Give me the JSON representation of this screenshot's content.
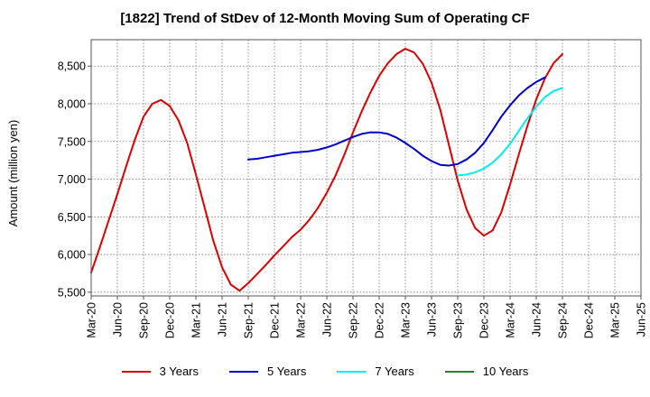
{
  "chart_data": {
    "type": "line",
    "title": "[1822]  Trend of StDev of 12-Month Moving Sum of Operating CF",
    "xlabel": "",
    "ylabel": "Amount (million yen)",
    "ylim": [
      5450,
      8850
    ],
    "yticks": [
      5500,
      6000,
      6500,
      7000,
      7500,
      8000,
      8500
    ],
    "ytick_labels": [
      "5,500",
      "6,000",
      "6,500",
      "7,000",
      "7,500",
      "8,000",
      "8,500"
    ],
    "xticks": [
      "Mar-20",
      "Jun-20",
      "Sep-20",
      "Dec-20",
      "Mar-21",
      "Jun-21",
      "Sep-21",
      "Dec-21",
      "Mar-22",
      "Jun-22",
      "Sep-22",
      "Dec-22",
      "Mar-23",
      "Jun-23",
      "Sep-23",
      "Dec-23",
      "Mar-24",
      "Jun-24",
      "Sep-24",
      "Dec-24",
      "Mar-25",
      "Jun-25"
    ],
    "grid": true,
    "legend_position": "bottom",
    "series": [
      {
        "name": "3 Years",
        "color": "#dd0000",
        "start": "Mar-20",
        "values": [
          5760,
          6100,
          6450,
          6800,
          7170,
          7520,
          7830,
          8000,
          8050,
          7970,
          7780,
          7480,
          7060,
          6620,
          6180,
          5830,
          5600,
          5520,
          5620,
          5740,
          5860,
          5990,
          6110,
          6230,
          6330,
          6460,
          6620,
          6820,
          7050,
          7320,
          7620,
          7900,
          8150,
          8370,
          8540,
          8660,
          8730,
          8680,
          8530,
          8280,
          7920,
          7450,
          6980,
          6600,
          6350,
          6250,
          6320,
          6560,
          6930,
          7330,
          7710,
          8060,
          8340,
          8540,
          8660
        ]
      },
      {
        "name": "5 Years",
        "color": "#0000cc",
        "start": "Sep-21",
        "values": [
          7260,
          7270,
          7290,
          7310,
          7330,
          7350,
          7360,
          7370,
          7390,
          7420,
          7460,
          7510,
          7560,
          7600,
          7620,
          7620,
          7600,
          7550,
          7480,
          7400,
          7310,
          7240,
          7190,
          7180,
          7200,
          7260,
          7350,
          7480,
          7650,
          7830,
          7980,
          8110,
          8210,
          8290,
          8350
        ]
      },
      {
        "name": "7 Years",
        "color": "#00eeee",
        "start": "Sep-23",
        "values": [
          7050,
          7060,
          7090,
          7140,
          7220,
          7330,
          7470,
          7640,
          7810,
          7960,
          8090,
          8170,
          8210
        ]
      },
      {
        "name": "10 Years",
        "color": "#228822",
        "start": "Sep-24",
        "values": []
      }
    ]
  }
}
